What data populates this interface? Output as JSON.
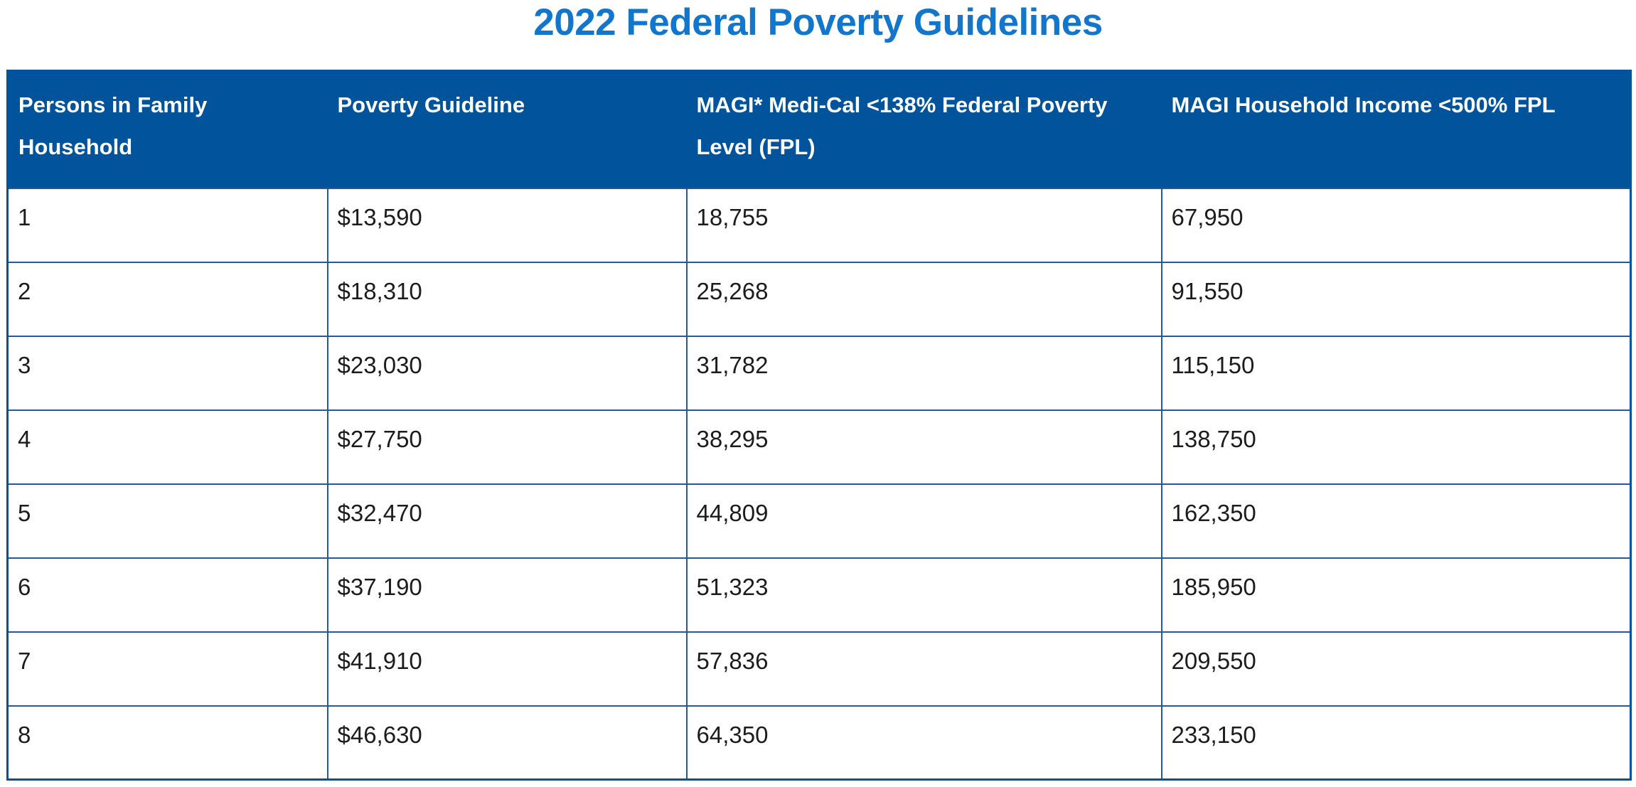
{
  "page": {
    "title": "2022 Federal Poverty Guidelines"
  },
  "colors": {
    "title": "#1276cd",
    "header_bg": "#01539b",
    "header_text": "#ffffff",
    "border": "#1f5c99",
    "cell_text": "#1c1c1c",
    "page_bg": "#ffffff"
  },
  "table": {
    "columns": [
      "Persons in Family Household",
      "Poverty Guideline",
      "MAGI* Medi-Cal <138% Federal Poverty Level (FPL)",
      "MAGI Household Income <500% FPL"
    ],
    "rows": [
      [
        "1",
        "$13,590",
        "18,755",
        "67,950"
      ],
      [
        "2",
        "$18,310",
        "25,268",
        "91,550"
      ],
      [
        "3",
        "$23,030",
        "31,782",
        "115,150"
      ],
      [
        "4",
        "$27,750",
        "38,295",
        "138,750"
      ],
      [
        "5",
        "$32,470",
        "44,809",
        "162,350"
      ],
      [
        "6",
        "$37,190",
        "51,323",
        "185,950"
      ],
      [
        "7",
        "$41,910",
        "57,836",
        "209,550"
      ],
      [
        "8",
        "$46,630",
        "64,350",
        "233,150"
      ]
    ]
  }
}
